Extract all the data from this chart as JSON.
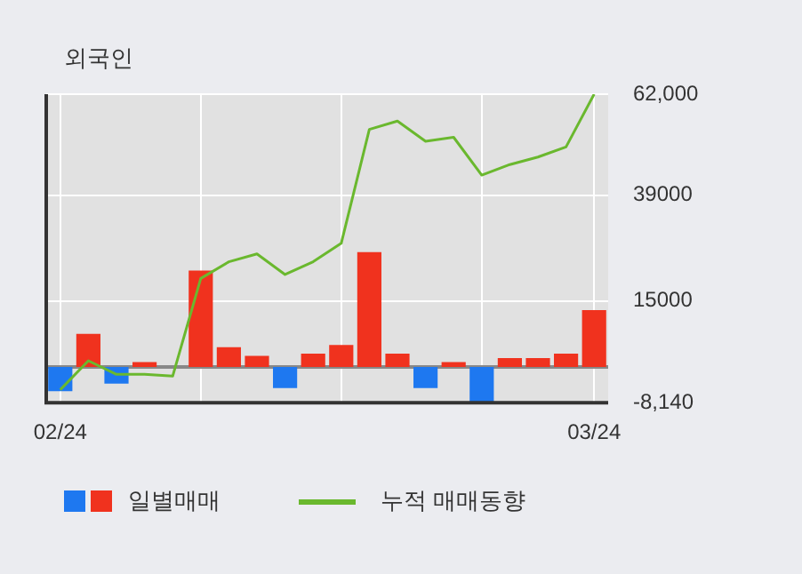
{
  "chart_data": {
    "type": "bar",
    "title": "외국인",
    "categories": [
      "02/24",
      null,
      null,
      null,
      null,
      null,
      null,
      null,
      null,
      null,
      null,
      null,
      null,
      null,
      null,
      null,
      null,
      null,
      null,
      "03/24"
    ],
    "series": [
      {
        "name": "일별매매",
        "colors": [
          "#1e78f0",
          "#f0321e",
          "#1e78f0",
          "#f0321e",
          "#f0321e",
          "#f0321e",
          "#f0321e",
          "#f0321e",
          "#1e78f0",
          "#f0321e",
          "#f0321e",
          "#f0321e",
          "#f0321e",
          "#1e78f0",
          "#f0321e",
          "#1e78f0",
          "#f0321e",
          "#f0321e",
          "#f0321e",
          "#f0321e"
        ],
        "values": [
          -5500,
          7500,
          -3800,
          1100,
          0,
          21900,
          4500,
          2500,
          -4800,
          3000,
          5000,
          26100,
          3000,
          -4800,
          1100,
          -8000,
          2000,
          2000,
          3000,
          12900
        ]
      },
      {
        "name": "누적 매매동향",
        "type": "line",
        "color": "#6ab82e",
        "values": [
          -5200,
          1400,
          -1700,
          -1700,
          -2100,
          20100,
          23900,
          25700,
          21000,
          23900,
          28100,
          54000,
          55900,
          51300,
          52200,
          43600,
          46000,
          47700,
          50000,
          62000
        ]
      }
    ],
    "ylim": [
      -8140,
      62000
    ],
    "yticks": [
      {
        "value": 62000,
        "label": "62,000"
      },
      39000,
      15000,
      {
        "value": -8140,
        "label": "-8,140"
      }
    ],
    "grid": true,
    "legend": "bottom",
    "marker": "none",
    "line_style": "solid"
  }
}
